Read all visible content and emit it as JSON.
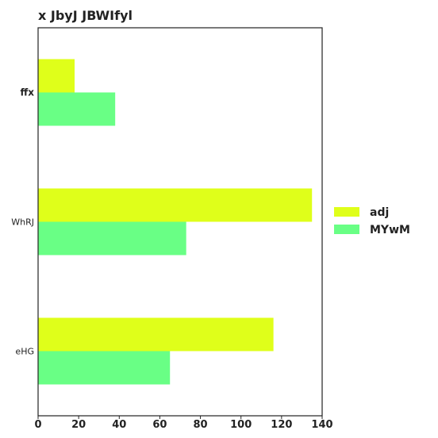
{
  "chart_data": {
    "type": "bar",
    "orientation": "horizontal",
    "title": "x JbyJ JBWIfyl",
    "xlabel": "",
    "ylabel": "",
    "categories": [
      "ffx",
      "WhRJ",
      "eHG"
    ],
    "series": [
      {
        "name": "adj",
        "color": "#dfff1a",
        "values": [
          18,
          135,
          116
        ]
      },
      {
        "name": "MYwM",
        "color": "#69ff85",
        "values": [
          38,
          73,
          65
        ]
      }
    ],
    "xlim": [
      0,
      140
    ],
    "xticks": [
      "0",
      "20",
      "40",
      "60",
      "80",
      "100",
      "120",
      "140"
    ],
    "grid": false,
    "legend_position": "right"
  }
}
